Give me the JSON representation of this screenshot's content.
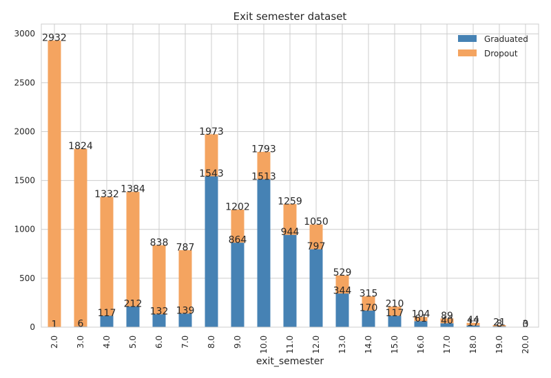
{
  "chart_data": {
    "type": "bar",
    "stacked": true,
    "title": "Exit semester dataset",
    "xlabel": "exit_semester",
    "ylabel": "",
    "ylim": [
      0,
      3100
    ],
    "yticks": [
      0,
      500,
      1000,
      1500,
      2000,
      2500,
      3000
    ],
    "grid": true,
    "legend_position": "top-right",
    "categories": [
      "2.0",
      "3.0",
      "4.0",
      "5.0",
      "6.0",
      "7.0",
      "8.0",
      "9.0",
      "10.0",
      "11.0",
      "12.0",
      "13.0",
      "14.0",
      "15.0",
      "16.0",
      "17.0",
      "18.0",
      "19.0",
      "20.0"
    ],
    "series": [
      {
        "name": "Graduated",
        "color": "#4682b4",
        "values": [
          1,
          6,
          117,
          212,
          132,
          139,
          1543,
          864,
          1513,
          944,
          797,
          344,
          170,
          117,
          61,
          40,
          17,
          8,
          0
        ]
      },
      {
        "name": "Dropout",
        "color": "#f4a460",
        "values": [
          2931,
          1818,
          1215,
          1172,
          706,
          648,
          430,
          338,
          280,
          315,
          253,
          185,
          145,
          93,
          43,
          49,
          27,
          13,
          3
        ]
      }
    ],
    "total_labels": [
      "2932",
      "1824",
      "1332",
      "1384",
      "838",
      "787",
      "1973",
      "1202",
      "1793",
      "1259",
      "1050",
      "529",
      "315",
      "210",
      "104",
      "89",
      "44",
      "21",
      "3"
    ],
    "graduated_labels": [
      "1",
      "6",
      "117",
      "212",
      "132",
      "139",
      "1543",
      "864",
      "1513",
      "944",
      "797",
      "344",
      "170",
      "117",
      "61",
      "40",
      "17",
      "8",
      "0"
    ]
  }
}
